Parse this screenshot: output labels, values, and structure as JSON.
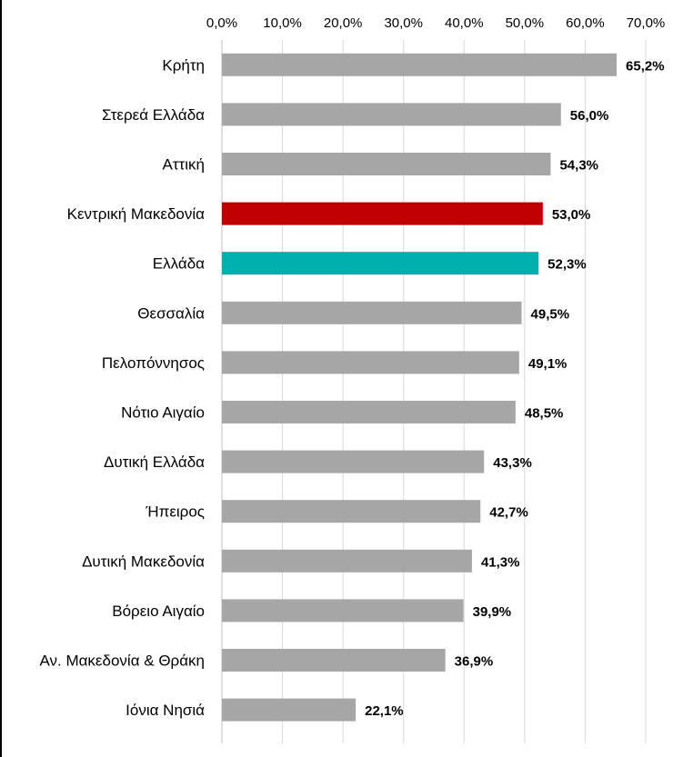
{
  "chart_data": {
    "type": "bar",
    "orientation": "horizontal",
    "categories": [
      "Κρήτη",
      "Στερεά Ελλάδα",
      "Αττική",
      "Κεντρική Μακεδονία",
      "Ελλάδα",
      "Θεσσαλία",
      "Πελοπόννησος",
      "Νότιο Αιγαίο",
      "Δυτική Ελλάδα",
      "Ήπειρος",
      "Δυτική Μακεδονία",
      "Βόρειο Αιγαίο",
      "Αν. Μακεδονία & Θράκη",
      "Ιόνια Νησιά"
    ],
    "values": [
      65.2,
      56.0,
      54.3,
      53.0,
      52.3,
      49.5,
      49.1,
      48.5,
      43.3,
      42.7,
      41.3,
      39.9,
      36.9,
      22.1
    ],
    "value_labels": [
      "65,2%",
      "56,0%",
      "54,3%",
      "53,0%",
      "52,3%",
      "49,5%",
      "49,1%",
      "48,5%",
      "43,3%",
      "42,7%",
      "41,3%",
      "39,9%",
      "36,9%",
      "22,1%"
    ],
    "colors": [
      "#a6a6a6",
      "#a6a6a6",
      "#a6a6a6",
      "#c00000",
      "#00b0ae",
      "#a6a6a6",
      "#a6a6a6",
      "#a6a6a6",
      "#a6a6a6",
      "#a6a6a6",
      "#a6a6a6",
      "#a6a6a6",
      "#a6a6a6",
      "#a6a6a6"
    ],
    "xticks": [
      "0,0%",
      "10,0%",
      "20,0%",
      "30,0%",
      "40,0%",
      "50,0%",
      "60,0%",
      "70,0%"
    ],
    "xlim": [
      0,
      70
    ],
    "axis_position": "top",
    "grid": true,
    "gridline_color": "#d9d9d9",
    "title": "",
    "xlabel": "",
    "ylabel": ""
  }
}
